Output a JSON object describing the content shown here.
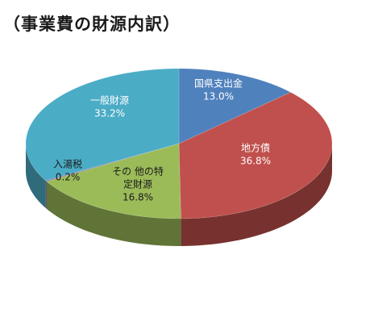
{
  "chart_data": {
    "type": "pie",
    "title": "（事業費の財源内訳）",
    "slices": [
      {
        "name": "国県支出金",
        "label": "国県支出金",
        "percent_text": "13.0%",
        "value": 13.0,
        "color": "#4F81BD",
        "label_color": "light"
      },
      {
        "name": "地方債",
        "label": "地方債",
        "percent_text": "36.8%",
        "value": 36.8,
        "color": "#C0504D",
        "label_color": "light"
      },
      {
        "name": "その他の特定財源",
        "label": "その 他の特\n定財源",
        "percent_text": "16.8%",
        "value": 16.8,
        "color": "#9BBB59",
        "label_color": "dark"
      },
      {
        "name": "入湯税",
        "label": "入湯税",
        "percent_text": "0.2%",
        "value": 0.2,
        "color": "#8064A2",
        "label_color": "dark"
      },
      {
        "name": "一般財源",
        "label": "一般財源",
        "percent_text": "33.2%",
        "value": 33.2,
        "color": "#4BACC6",
        "label_color": "light"
      }
    ],
    "start_angle_deg": 90,
    "direction": "clockwise",
    "legend": "none",
    "grid": false
  }
}
